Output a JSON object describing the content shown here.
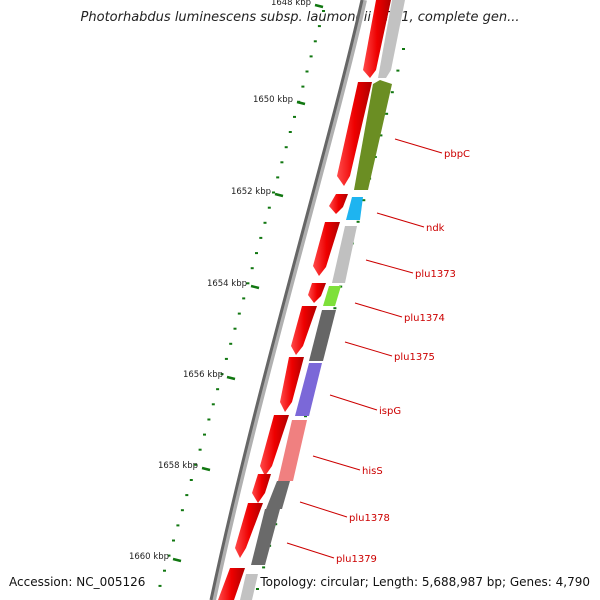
{
  "title": "Photorhabdus luminescens subsp. laumondii TTO1, complete gen...",
  "footer": {
    "accession": "Accession: NC_005126",
    "topology": "Topology: circular; Length: 5,688,987 bp; Genes: 4,790"
  },
  "colors": {
    "cds_red": "#ee0000",
    "tick_green": "#117711",
    "label_red": "#cc0000",
    "backbone": "#666666"
  },
  "scale": {
    "ticks": [
      {
        "label": "1648 kbp"
      },
      {
        "label": "1650 kbp"
      },
      {
        "label": "1652 kbp"
      },
      {
        "label": "1654 kbp"
      },
      {
        "label": "1656 kbp"
      },
      {
        "label": "1658 kbp"
      },
      {
        "label": "1660 kbp"
      }
    ]
  },
  "genes": [
    {
      "name": "pbpC",
      "color": "#6b8e23"
    },
    {
      "name": "ndk",
      "color": "#1eb4f0"
    },
    {
      "name": "plu1373",
      "color": "#c0c0c0"
    },
    {
      "name": "plu1374",
      "color": "#7ee03a"
    },
    {
      "name": "plu1375",
      "color": "#666666"
    },
    {
      "name": "ispG",
      "color": "#7b68d8"
    },
    {
      "name": "hisS",
      "color": "#f08080"
    },
    {
      "name": "plu1378",
      "color": "#6a6a6a"
    },
    {
      "name": "plu1379",
      "color": "#6a6a6a"
    }
  ]
}
